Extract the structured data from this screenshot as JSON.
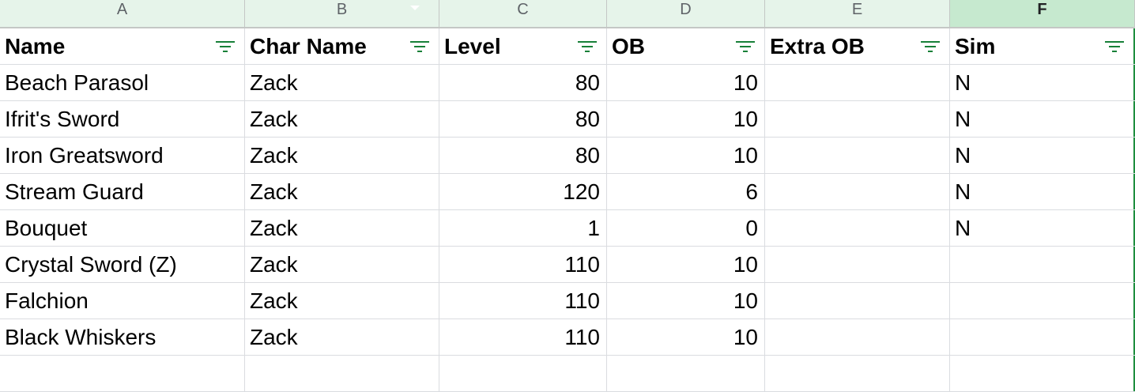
{
  "columns": [
    {
      "letter": "A",
      "header": "Name"
    },
    {
      "letter": "B",
      "header": "Char Name"
    },
    {
      "letter": "C",
      "header": "Level"
    },
    {
      "letter": "D",
      "header": "OB"
    },
    {
      "letter": "E",
      "header": "Extra OB"
    },
    {
      "letter": "F",
      "header": "Sim"
    }
  ],
  "rows": [
    [
      "Beach Parasol",
      "Zack",
      "80",
      "10",
      "",
      "N"
    ],
    [
      "Ifrit's Sword",
      "Zack",
      "80",
      "10",
      "",
      "N"
    ],
    [
      "Iron Greatsword",
      "Zack",
      "80",
      "10",
      "",
      "N"
    ],
    [
      "Stream Guard",
      "Zack",
      "120",
      "6",
      "",
      "N"
    ],
    [
      "Bouquet",
      "Zack",
      "1",
      "0",
      "",
      "N"
    ],
    [
      "Crystal Sword (Z)",
      "Zack",
      "110",
      "10",
      "",
      ""
    ],
    [
      "Falchion",
      "Zack",
      "110",
      "10",
      "",
      ""
    ],
    [
      "Black Whiskers",
      "Zack",
      "110",
      "10",
      "",
      ""
    ],
    [
      "",
      "",
      "",
      "",
      "",
      ""
    ]
  ],
  "icons": {
    "filter": "filter-icon",
    "column_menu": "chevron-down-icon"
  },
  "colors": {
    "header_bg": "#e6f4ea",
    "selected_header_bg": "#c6e9cf",
    "filter_green": "#188038",
    "selection_border": "#1e8e3e"
  }
}
